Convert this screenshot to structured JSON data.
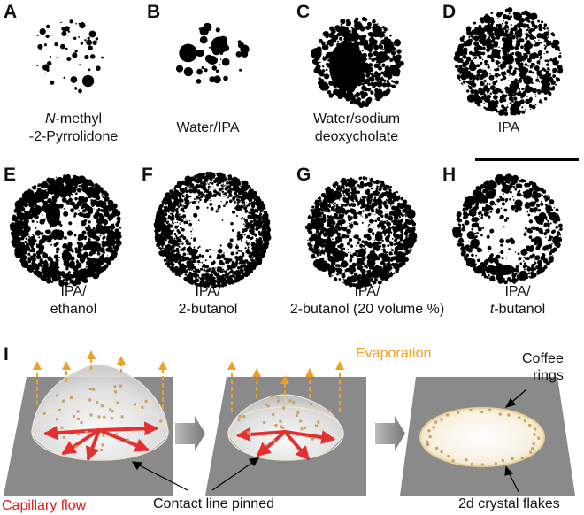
{
  "panels": [
    {
      "letter": "A",
      "line1_em": "N",
      "line1": "-methyl",
      "line2_em": "",
      "line2": "-2-Pyrrolidone"
    },
    {
      "letter": "B",
      "line1_em": "",
      "line1": "Water/IPA",
      "line2_em": "",
      "line2": ""
    },
    {
      "letter": "C",
      "line1_em": "",
      "line1": "Water/sodium",
      "line2_em": "",
      "line2": "deoxycholate"
    },
    {
      "letter": "D",
      "line1_em": "",
      "line1": "IPA",
      "line2_em": "",
      "line2": ""
    },
    {
      "letter": "E",
      "line1_em": "",
      "line1": "IPA/",
      "line2_em": "",
      "line2": "ethanol"
    },
    {
      "letter": "F",
      "line1_em": "",
      "line1": "IPA/",
      "line2_em": "",
      "line2": "2-butanol"
    },
    {
      "letter": "G",
      "line1_em": "",
      "line1": "IPA/",
      "line2_em": "",
      "line2": "2-butanol (20 volume %)"
    },
    {
      "letter": "H",
      "line1_em": "",
      "line1": "IPA/",
      "line2_em": "t",
      "line2": "-butanol"
    }
  ],
  "schematic": {
    "letter": "I",
    "evaporation": "Evaporation",
    "coffee_rings_line1": "Coffee",
    "coffee_rings_line2": "rings",
    "capillary_flow": "Capillary flow",
    "contact_line": "Contact line pinned",
    "flakes": "2d crystal flakes"
  },
  "colors": {
    "evaporation": "#f0a020",
    "capillary": "#e02020",
    "substrate": "#8a8a8a",
    "flake": "#c8a060"
  }
}
